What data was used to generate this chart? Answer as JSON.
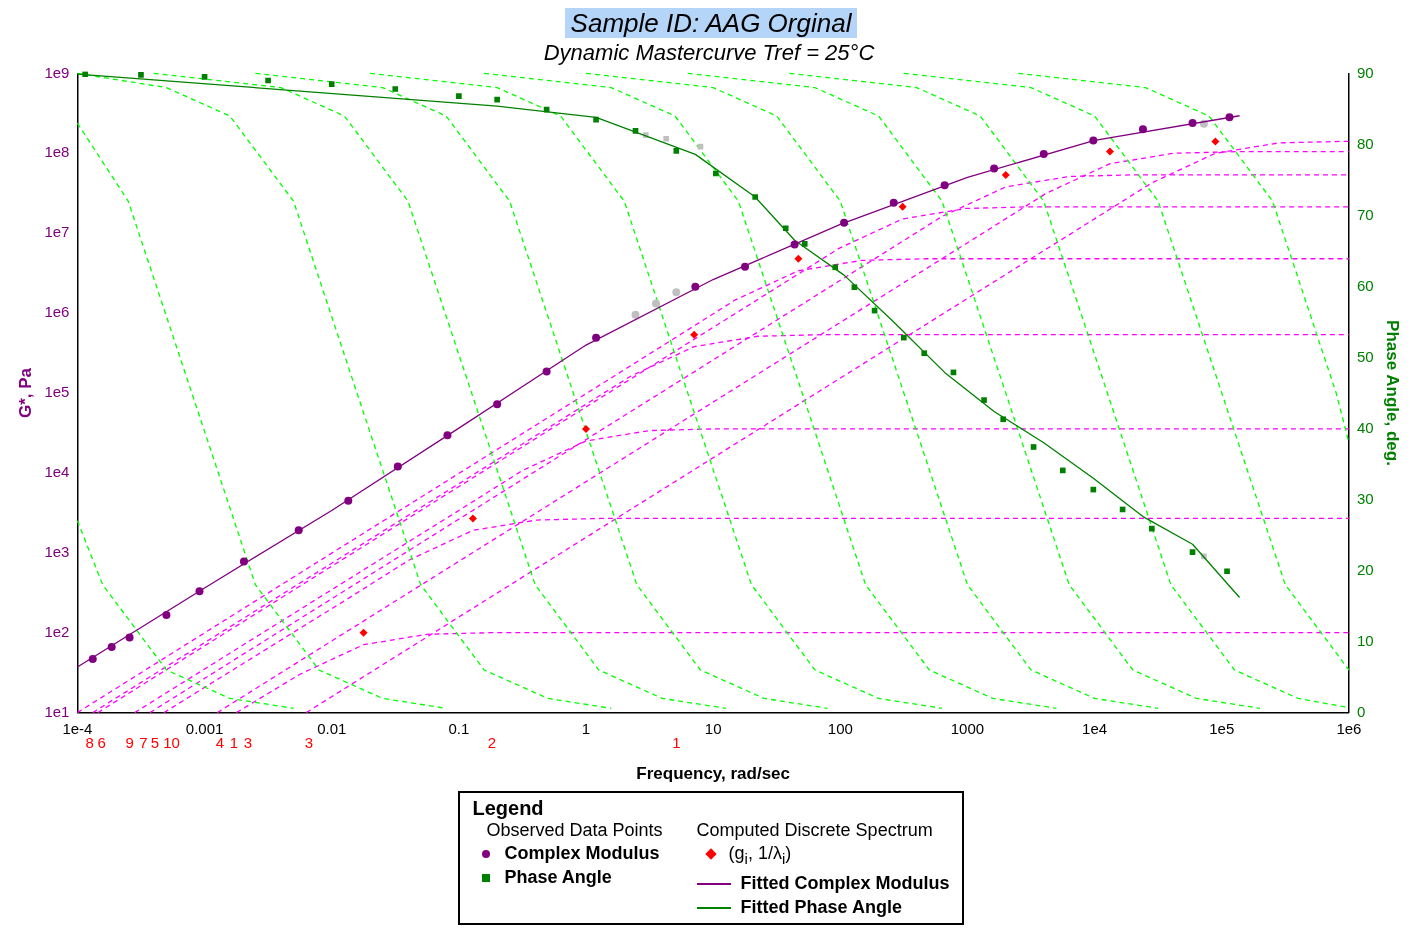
{
  "chart_data": {
    "type": "scatter",
    "title": "Sample ID: AAG Orginal",
    "subtitle": "Dynamic Mastercurve Tref = 25°C",
    "xlabel": "Frequency, rad/sec",
    "ylabel": "G*, Pa",
    "y2label": "Phase Angle, deg.",
    "legend_title": "Legend",
    "log": "xy",
    "grid": false,
    "legend": "bottom",
    "xlim": [
      0.0001,
      1000000
    ],
    "xticks": [
      {
        "value": 0.0001,
        "label": "1e-4"
      },
      0.001,
      0.01,
      0.1,
      1,
      10,
      100,
      1000,
      {
        "value": 10000,
        "label": "1e4"
      },
      {
        "value": 100000,
        "label": "1e5"
      },
      {
        "value": 1000000,
        "label": "1e6"
      }
    ],
    "ylim": [
      10,
      1000000000
    ],
    "yticks": [
      {
        "value": 10,
        "label": "1e1"
      },
      {
        "value": 100,
        "label": "1e2"
      },
      {
        "value": 1000,
        "label": "1e3"
      },
      {
        "value": 10000,
        "label": "1e4"
      },
      {
        "value": 100000,
        "label": "1e5"
      },
      {
        "value": 1000000,
        "label": "1e6"
      },
      {
        "value": 10000000,
        "label": "1e7"
      },
      {
        "value": 100000000,
        "label": "1e8"
      },
      {
        "value": 1000000000,
        "label": "1e9"
      }
    ],
    "y2lim": [
      0,
      90
    ],
    "y2ticks": [
      0,
      10,
      20,
      30,
      40,
      50,
      60,
      70,
      80,
      90
    ],
    "annotations": [
      "Observed Data Points",
      "Computed Discrete Spectrum",
      "8",
      "6",
      "9",
      "7",
      "5",
      "10",
      "4",
      "1",
      "3",
      "3",
      "2",
      "1"
    ],
    "series": [
      {
        "name": "Complex Modulus",
        "marker": "circle",
        "color": "#800080",
        "x": [
          0.000132,
          0.000186,
          0.000257,
          0.000501,
          0.000912,
          0.00204,
          0.0055,
          0.0135,
          0.0331,
          0.0813,
          0.2,
          0.49,
          1.2,
          7.24,
          17.8,
          43.7,
          107,
          263,
          661,
          1620,
          3980,
          9770,
          24000,
          58900,
          115000
        ],
        "values": [
          46.8,
          66.1,
          87.1,
          166,
          331,
          776,
          1910,
          4470,
          12000,
          29500,
          72400,
          186000,
          490000,
          2140000,
          3800000,
          7240000,
          13500000,
          24000000,
          39800000,
          64600000,
          97700000,
          145000000,
          200000000,
          240000000,
          282000000
        ]
      },
      {
        "name": "Phase Angle",
        "marker": "square",
        "color": "#008000",
        "x": [
          0.000115,
          0.000316,
          0.001,
          0.00316,
          0.01,
          0.0316,
          0.1,
          0.2,
          0.49,
          1.2,
          2.45,
          5.13,
          10.5,
          21.4,
          37.2,
          52.5,
          91.2,
          129,
          186,
          316,
          457,
          776,
          1350,
          1910,
          3310,
          5620,
          9770,
          16600,
          28200,
          58900,
          110000
        ],
        "values": [
          89.9,
          89.8,
          89.5,
          89,
          88.5,
          87.8,
          86.8,
          86.3,
          84.9,
          83.5,
          81.9,
          79.1,
          75.9,
          72.6,
          68.2,
          66,
          62.7,
          59.9,
          56.6,
          52.8,
          50.6,
          47.9,
          44,
          41.3,
          37.4,
          34.1,
          31.4,
          28.6,
          25.9,
          22.6,
          19.9
        ],
        "axis": "y2"
      },
      {
        "name": "(g$_{i}$, 1/λ$_{i}$)",
        "marker": "diamond",
        "color": "#ff0000",
        "x": [
          0.0178,
          0.129,
          1,
          7.08,
          46.8,
          309,
          2000,
          13200,
          89100
        ],
        "values": [
          100,
          2690,
          35500,
          537000,
          4790000,
          21400000,
          53700000,
          105000000,
          141000000
        ]
      },
      {
        "name": "Fitted Complex Modulus",
        "type": "line",
        "marker": "none",
        "line_style": "solid",
        "color": "#800080",
        "x": [
          0.0001,
          0.001,
          0.01,
          0.1,
          1,
          10,
          100,
          1000,
          10000,
          138000
        ],
        "values": [
          37.2,
          363,
          3390,
          36300,
          398000,
          2630000,
          12900000,
          50100000,
          145000000,
          295000000
        ]
      },
      {
        "name": "Fitted Phase Angle",
        "type": "line",
        "marker": "none",
        "line_style": "solid",
        "color": "#008000",
        "axis": "y2",
        "x": [
          0.0001,
          0.2,
          1.2,
          7.24,
          21.4,
          43.7,
          107,
          263,
          661,
          1620,
          3980,
          9770,
          24000,
          58900,
          138000
        ],
        "values": [
          89.9,
          85.4,
          83.8,
          78.6,
          72.6,
          66.5,
          61.6,
          55,
          47.9,
          42.4,
          38,
          33,
          27.6,
          23.7,
          16.2
        ]
      },
      {
        "marker": "circle",
        "color": "#c0c0c0",
        "x": [
          2.45,
          3.55,
          5.13,
          72400
        ],
        "values": [
          955000,
          1320000,
          1820000,
          234000000
        ]
      },
      {
        "marker": "square",
        "color": "#c0c0c0",
        "axis": "y2",
        "x": [
          2.95,
          4.27,
          7.94,
          72400
        ],
        "values": [
          81.3,
          80.8,
          79.7,
          22
        ]
      },
      {
        "type": "line",
        "marker": "none",
        "line_style": "dashed",
        "color": "#00ff00",
        "axis": "y2",
        "x": [
          0.0001,
          0.000158,
          0.000501,
          0.00158,
          0.00501
        ],
        "values": [
          27,
          18,
          6,
          2,
          0.6
        ]
      },
      {
        "type": "line",
        "marker": "none",
        "line_style": "dashed",
        "color": "#00ff00",
        "axis": "y2",
        "x": [
          0.0001,
          0.000251,
          0.000794,
          0.00251,
          0.00794,
          0.0251,
          0.0794
        ],
        "values": [
          83,
          72,
          45,
          18,
          6,
          2,
          0.6
        ]
      },
      {
        "type": "line",
        "marker": "none",
        "line_style": "dashed",
        "color": "#00ff00",
        "axis": "y2",
        "x": [
          0.0001,
          0.000501,
          0.00158,
          0.00501,
          0.0158,
          0.0501,
          0.158,
          0.501,
          1.58
        ],
        "values": [
          90,
          88,
          84,
          72,
          45,
          18,
          6,
          2,
          0.6
        ]
      },
      {
        "type": "line",
        "marker": "none",
        "line_style": "dashed",
        "color": "#00ff00",
        "axis": "y2",
        "x": [
          0.000398,
          0.00398,
          0.0126,
          0.0398,
          0.126,
          0.398,
          1.26,
          3.98,
          12.6
        ],
        "values": [
          90,
          88,
          84,
          72,
          45,
          18,
          6,
          2,
          0.6
        ]
      },
      {
        "type": "line",
        "marker": "none",
        "line_style": "dashed",
        "color": "#00ff00",
        "axis": "y2",
        "x": [
          0.00251,
          0.0251,
          0.0794,
          0.251,
          0.794,
          2.51,
          7.94,
          25.1,
          79.4
        ],
        "values": [
          90,
          88,
          84,
          72,
          45,
          18,
          6,
          2,
          0.6
        ]
      },
      {
        "type": "line",
        "marker": "none",
        "line_style": "dashed",
        "color": "#00ff00",
        "axis": "y2",
        "x": [
          0.02,
          0.2,
          0.631,
          2,
          6.31,
          20,
          63.1,
          200,
          631
        ],
        "values": [
          90,
          88,
          84,
          72,
          45,
          18,
          6,
          2,
          0.6
        ]
      },
      {
        "type": "line",
        "marker": "none",
        "line_style": "dashed",
        "color": "#00ff00",
        "axis": "y2",
        "x": [
          0.158,
          1.58,
          5.01,
          15.8,
          50.1,
          158,
          501,
          1580,
          5010
        ],
        "values": [
          90,
          88,
          84,
          72,
          45,
          18,
          6,
          2,
          0.6
        ]
      },
      {
        "type": "line",
        "marker": "none",
        "line_style": "dashed",
        "color": "#00ff00",
        "axis": "y2",
        "x": [
          1,
          10,
          31.6,
          100,
          316,
          1000,
          3160,
          10000,
          31600
        ],
        "values": [
          90,
          88,
          84,
          72,
          45,
          18,
          6,
          2,
          0.6
        ]
      },
      {
        "type": "line",
        "marker": "none",
        "line_style": "dashed",
        "color": "#00ff00",
        "axis": "y2",
        "x": [
          6.31,
          63.1,
          200,
          631,
          2000,
          6310,
          20000,
          63100,
          200000
        ],
        "values": [
          90,
          88,
          84,
          72,
          45,
          18,
          6,
          2,
          0.6
        ]
      },
      {
        "type": "line",
        "marker": "none",
        "line_style": "dashed",
        "color": "#00ff00",
        "axis": "y2",
        "x": [
          39.8,
          398,
          1260,
          3980,
          12600,
          39800,
          126000,
          398000,
          1000000
        ],
        "values": [
          90,
          88,
          84,
          72,
          45,
          18,
          6,
          2,
          0.7
        ]
      },
      {
        "type": "line",
        "marker": "none",
        "line_style": "dashed",
        "color": "#00ff00",
        "axis": "y2",
        "x": [
          316,
          3160,
          10000,
          31600,
          100000,
          316000,
          1000000
        ],
        "values": [
          90,
          88,
          84,
          72,
          45,
          18,
          6
        ]
      },
      {
        "type": "line",
        "marker": "none",
        "line_style": "dashed",
        "color": "#00ff00",
        "axis": "y2",
        "x": [
          2510,
          25100,
          79400,
          251000,
          794000,
          1000000
        ],
        "values": [
          90,
          88,
          84,
          72,
          45,
          38
        ]
      },
      {
        "type": "line",
        "marker": "none",
        "line_style": "dashed",
        "color": "#ff00ff",
        "x": [
          0.00178,
          0.00562,
          0.0178,
          0.0562,
          0.178,
          1000000
        ],
        "values": [
          10,
          30.2,
          70.8,
          95.5,
          100,
          100
        ]
      },
      {
        "type": "line",
        "marker": "none",
        "line_style": "dashed",
        "color": "#ff00ff",
        "x": [
          0.000479,
          0.0129,
          0.0407,
          0.129,
          0.407,
          1.29,
          1000000
        ],
        "values": [
          10,
          257,
          813,
          1910,
          2570,
          2690,
          2690
        ]
      },
      {
        "type": "line",
        "marker": "none",
        "line_style": "dashed",
        "color": "#ff00ff",
        "x": [
          0.000282,
          0.1,
          0.316,
          1,
          3.16,
          10,
          1000000
        ],
        "values": [
          10,
          3390,
          10700,
          25100,
          33900,
          35500,
          35500
        ]
      },
      {
        "type": "line",
        "marker": "none",
        "line_style": "dashed",
        "color": "#ff00ff",
        "x": [
          0.000132,
          0.708,
          2.24,
          7.08,
          22.4,
          70.8,
          1000000
        ],
        "values": [
          10,
          51300,
          162000,
          380000,
          513000,
          537000,
          537000
        ]
      },
      {
        "type": "line",
        "marker": "none",
        "line_style": "dashed",
        "color": "#ff00ff",
        "x": [
          0.0001,
          4.68,
          14.8,
          46.8,
          148,
          468,
          1000000
        ],
        "values": [
          10,
          457000,
          1450000,
          3390000,
          4570000,
          4790000,
          4790000
        ]
      },
      {
        "type": "line",
        "marker": "none",
        "line_style": "dashed",
        "color": "#ff00ff",
        "x": [
          0.000145,
          30.9,
          97.7,
          309,
          977,
          3090,
          1000000
        ],
        "values": [
          10,
          2040000,
          6460000,
          15100000,
          20400000,
          21400000,
          21400000
        ]
      },
      {
        "type": "line",
        "marker": "none",
        "line_style": "dashed",
        "color": "#ff00ff",
        "x": [
          0.000372,
          200,
          631,
          2000,
          6310,
          20000,
          1000000
        ],
        "values": [
          10,
          5130000,
          16200000,
          38000000,
          51300000,
          53700000,
          53700000
        ]
      },
      {
        "type": "line",
        "marker": "none",
        "line_style": "dashed",
        "color": "#ff00ff",
        "x": [
          0.00126,
          1320,
          4170,
          13200,
          41700,
          132000,
          1000000
        ],
        "values": [
          10,
          10000000,
          31600000,
          74100000,
          100000000,
          105000000,
          105000000
        ]
      },
      {
        "type": "line",
        "marker": "none",
        "line_style": "dashed",
        "color": "#ff00ff",
        "x": [
          0.00631,
          8910,
          28200,
          89100,
          282000,
          891000,
          1000000
        ],
        "values": [
          10,
          13500000,
          42700000,
          100000000,
          135000000,
          141000000,
          141000000
        ]
      }
    ]
  }
}
